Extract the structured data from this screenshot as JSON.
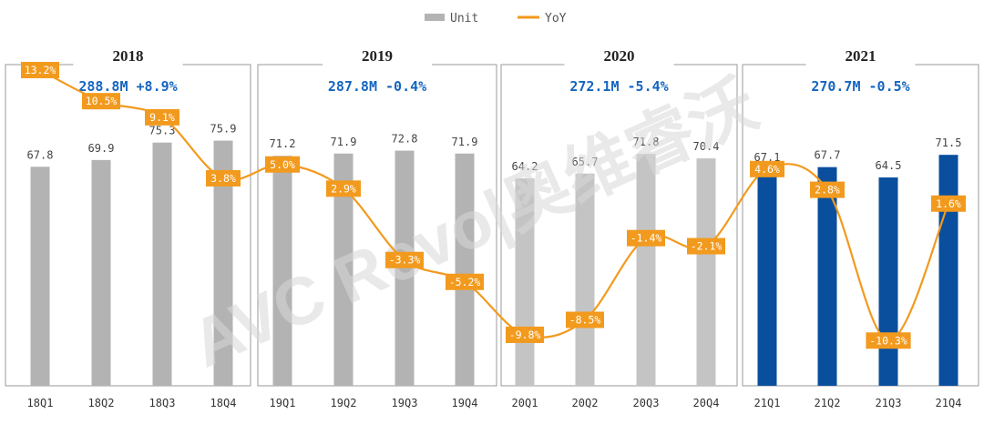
{
  "chart_data": {
    "type": "bar+line",
    "legend": [
      {
        "name": "Unit",
        "style": "bar",
        "color": "#b3b3b3"
      },
      {
        "name": "YoY",
        "style": "line",
        "color": "#f29a1e"
      }
    ],
    "categories": [
      "18Q1",
      "18Q2",
      "18Q3",
      "18Q4",
      "19Q1",
      "19Q2",
      "19Q3",
      "19Q4",
      "20Q1",
      "20Q2",
      "20Q3",
      "20Q4",
      "21Q1",
      "21Q2",
      "21Q3",
      "21Q4"
    ],
    "unit_values": [
      "67.8",
      "69.9",
      "75.3",
      "75.9",
      "71.2",
      "71.9",
      "72.8",
      "71.9",
      "64.2",
      "65.7",
      "71.8",
      "70.4",
      "67.1",
      "67.7",
      "64.5",
      "71.5"
    ],
    "yoy_values": [
      13.2,
      10.5,
      9.1,
      3.8,
      5.0,
      2.9,
      -3.3,
      -5.2,
      -9.8,
      -8.5,
      -1.4,
      -2.1,
      4.6,
      2.8,
      -10.3,
      1.6
    ],
    "yoy_labels": [
      "13.2%",
      "10.5%",
      "9.1%",
      "3.8%",
      "5.0%",
      "2.9%",
      "-3.3%",
      "-5.2%",
      "-9.8%",
      "-8.5%",
      "-1.4%",
      "-2.1%",
      "4.6%",
      "2.8%",
      "-10.3%",
      "1.6%"
    ],
    "groups": [
      {
        "year": "2018",
        "summary": "288.8M +8.9%"
      },
      {
        "year": "2019",
        "summary": "287.8M -0.4%"
      },
      {
        "year": "2020",
        "summary": "272.1M -5.4%"
      },
      {
        "year": "2021",
        "summary": "270.7M -0.5%"
      }
    ],
    "colors": {
      "bar_default": "#b3b3b3",
      "bar_2020": "#c4c4c4",
      "bar_2021": "#0a4f9e",
      "yoy_line": "#f29a1e",
      "summary_text": "#1565c0",
      "panel_border": "#9a9a9a"
    }
  },
  "watermark": "AVC Revo|奥维睿沃"
}
